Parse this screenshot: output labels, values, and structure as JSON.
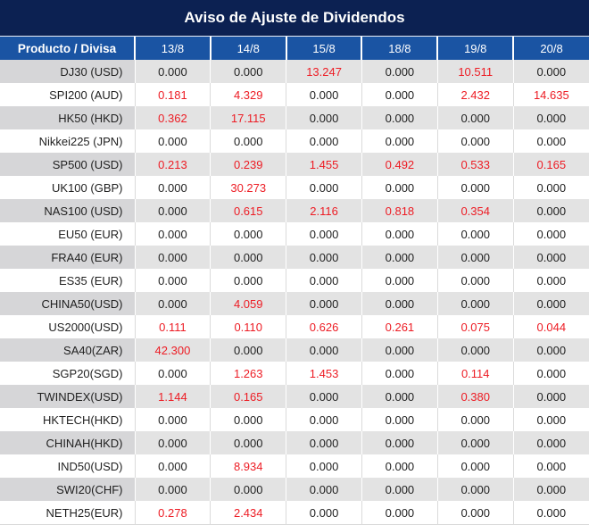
{
  "title": "Aviso de Ajuste de Dividendos",
  "chart_data": {
    "type": "table",
    "title": "Aviso de Ajuste de Dividendos",
    "columns": [
      "Producto / Divisa",
      "13/8",
      "14/8",
      "15/8",
      "18/8",
      "19/8",
      "20/8"
    ],
    "rows": [
      {
        "product": "DJ30 (USD)",
        "values": [
          "0.000",
          "0.000",
          "13.247",
          "0.000",
          "10.511",
          "0.000"
        ],
        "red_indices": [
          2,
          4
        ]
      },
      {
        "product": "SPI200 (AUD)",
        "values": [
          "0.181",
          "4.329",
          "0.000",
          "0.000",
          "2.432",
          "14.635"
        ],
        "red_indices": [
          0,
          1,
          4,
          5
        ]
      },
      {
        "product": "HK50 (HKD)",
        "values": [
          "0.362",
          "17.115",
          "0.000",
          "0.000",
          "0.000",
          "0.000"
        ],
        "red_indices": [
          0,
          1
        ]
      },
      {
        "product": "Nikkei225 (JPN)",
        "values": [
          "0.000",
          "0.000",
          "0.000",
          "0.000",
          "0.000",
          "0.000"
        ],
        "red_indices": []
      },
      {
        "product": "SP500 (USD)",
        "values": [
          "0.213",
          "0.239",
          "1.455",
          "0.492",
          "0.533",
          "0.165"
        ],
        "red_indices": [
          0,
          1,
          2,
          3,
          4,
          5
        ]
      },
      {
        "product": "UK100 (GBP)",
        "values": [
          "0.000",
          "30.273",
          "0.000",
          "0.000",
          "0.000",
          "0.000"
        ],
        "red_indices": [
          1
        ]
      },
      {
        "product": "NAS100 (USD)",
        "values": [
          "0.000",
          "0.615",
          "2.116",
          "0.818",
          "0.354",
          "0.000"
        ],
        "red_indices": [
          1,
          2,
          3,
          4
        ]
      },
      {
        "product": "EU50 (EUR)",
        "values": [
          "0.000",
          "0.000",
          "0.000",
          "0.000",
          "0.000",
          "0.000"
        ],
        "red_indices": []
      },
      {
        "product": "FRA40 (EUR)",
        "values": [
          "0.000",
          "0.000",
          "0.000",
          "0.000",
          "0.000",
          "0.000"
        ],
        "red_indices": []
      },
      {
        "product": "ES35 (EUR)",
        "values": [
          "0.000",
          "0.000",
          "0.000",
          "0.000",
          "0.000",
          "0.000"
        ],
        "red_indices": []
      },
      {
        "product": "CHINA50(USD)",
        "values": [
          "0.000",
          "4.059",
          "0.000",
          "0.000",
          "0.000",
          "0.000"
        ],
        "red_indices": [
          1
        ]
      },
      {
        "product": "US2000(USD)",
        "values": [
          "0.111",
          "0.110",
          "0.626",
          "0.261",
          "0.075",
          "0.044"
        ],
        "red_indices": [
          0,
          1,
          2,
          3,
          4,
          5
        ]
      },
      {
        "product": "SA40(ZAR)",
        "values": [
          "42.300",
          "0.000",
          "0.000",
          "0.000",
          "0.000",
          "0.000"
        ],
        "red_indices": [
          0
        ]
      },
      {
        "product": "SGP20(SGD)",
        "values": [
          "0.000",
          "1.263",
          "1.453",
          "0.000",
          "0.114",
          "0.000"
        ],
        "red_indices": [
          1,
          2,
          4
        ]
      },
      {
        "product": "TWINDEX(USD)",
        "values": [
          "1.144",
          "0.165",
          "0.000",
          "0.000",
          "0.380",
          "0.000"
        ],
        "red_indices": [
          0,
          1,
          4
        ]
      },
      {
        "product": "HKTECH(HKD)",
        "values": [
          "0.000",
          "0.000",
          "0.000",
          "0.000",
          "0.000",
          "0.000"
        ],
        "red_indices": []
      },
      {
        "product": "CHINAH(HKD)",
        "values": [
          "0.000",
          "0.000",
          "0.000",
          "0.000",
          "0.000",
          "0.000"
        ],
        "red_indices": []
      },
      {
        "product": "IND50(USD)",
        "values": [
          "0.000",
          "8.934",
          "0.000",
          "0.000",
          "0.000",
          "0.000"
        ],
        "red_indices": [
          1
        ]
      },
      {
        "product": "SWI20(CHF)",
        "values": [
          "0.000",
          "0.000",
          "0.000",
          "0.000",
          "0.000",
          "0.000"
        ],
        "red_indices": []
      },
      {
        "product": "NETH25(EUR)",
        "values": [
          "0.278",
          "2.434",
          "0.000",
          "0.000",
          "0.000",
          "0.000"
        ],
        "red_indices": [
          0,
          1
        ]
      }
    ]
  },
  "colors": {
    "title_bg": "#0C2152",
    "header_bg": "#1A54A3",
    "header_text": "#FFFFFF",
    "row_gray_label": "#D6D6D8",
    "row_gray_cell": "#E3E3E3",
    "row_white": "#FFFFFF",
    "value_black": "#1F1F1F",
    "value_red": "#ED1C24"
  }
}
